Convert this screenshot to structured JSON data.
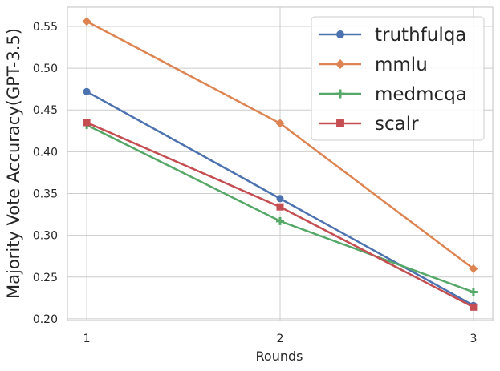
{
  "chart_data": {
    "type": "line",
    "x": [
      1,
      2,
      3
    ],
    "xticks": [
      "1",
      "2",
      "3"
    ],
    "yticks": [
      "0.20",
      "0.25",
      "0.30",
      "0.35",
      "0.40",
      "0.45",
      "0.50",
      "0.55"
    ],
    "ylim": [
      0.198,
      0.573
    ],
    "xlim": [
      0.9,
      3.1
    ],
    "xlabel": "Rounds",
    "ylabel": "Majority Vote Accuracy(GPT-3.5)",
    "grid": true,
    "legend_position": "top-right",
    "series": [
      {
        "name": "truthfulqa",
        "values": [
          0.472,
          0.344,
          0.216
        ],
        "color": "#4c72b0",
        "marker": "circle"
      },
      {
        "name": "mmlu",
        "values": [
          0.556,
          0.434,
          0.26
        ],
        "color": "#dd8452",
        "marker": "diamond"
      },
      {
        "name": "medmcqa",
        "values": [
          0.432,
          0.317,
          0.232
        ],
        "color": "#55a868",
        "marker": "plus"
      },
      {
        "name": "scalr",
        "values": [
          0.435,
          0.334,
          0.214
        ],
        "color": "#c44e52",
        "marker": "square"
      }
    ]
  }
}
